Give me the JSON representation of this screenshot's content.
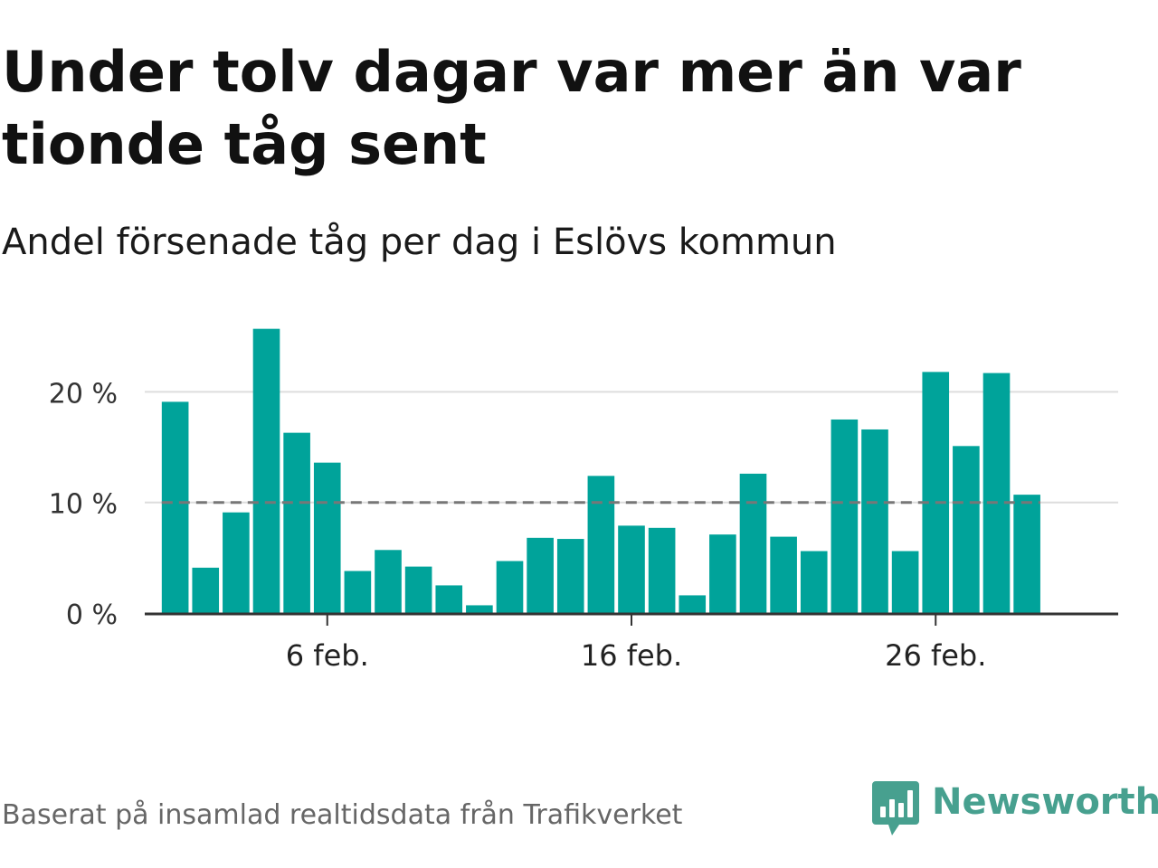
{
  "title": "Under tolv dagar var mer än var tionde tåg sent",
  "subtitle": "Andel försenade tåg per dag i Eslövs kommun",
  "source": "Baserat på insamlad realtidsdata från Trafikverket",
  "brand": {
    "name": "Newsworthy",
    "icon": "newsworthy-logo-icon"
  },
  "colors": {
    "bar": "#00a39a",
    "reference_line": "#777777",
    "grid": "#dddddd",
    "axis": "#333333",
    "brand": "#47a08f"
  },
  "chart_data": {
    "type": "bar",
    "x": [
      1,
      2,
      3,
      4,
      5,
      6,
      7,
      8,
      9,
      10,
      11,
      12,
      13,
      14,
      15,
      16,
      17,
      18,
      19,
      20,
      21,
      22,
      23,
      24,
      25,
      26,
      27,
      28,
      29
    ],
    "values": [
      19.1,
      4.1,
      9.1,
      25.7,
      16.3,
      13.6,
      3.8,
      5.7,
      4.2,
      2.5,
      0.7,
      4.7,
      6.8,
      6.7,
      12.4,
      7.9,
      7.7,
      1.6,
      7.1,
      12.6,
      6.9,
      5.6,
      17.5,
      16.6,
      5.6,
      21.8,
      15.1,
      21.7,
      10.7
    ],
    "x_ticks": [
      6,
      16,
      26
    ],
    "x_tick_labels": [
      "6 feb.",
      "16 feb.",
      "26 feb."
    ],
    "y_ticks": [
      0,
      10,
      20
    ],
    "y_tick_labels": [
      "0 %",
      "10 %",
      "20 %"
    ],
    "ylim": [
      0,
      26
    ],
    "xlim": [
      0,
      32
    ],
    "reference_line": 10,
    "grid": true,
    "xlabel": "",
    "ylabel": ""
  }
}
